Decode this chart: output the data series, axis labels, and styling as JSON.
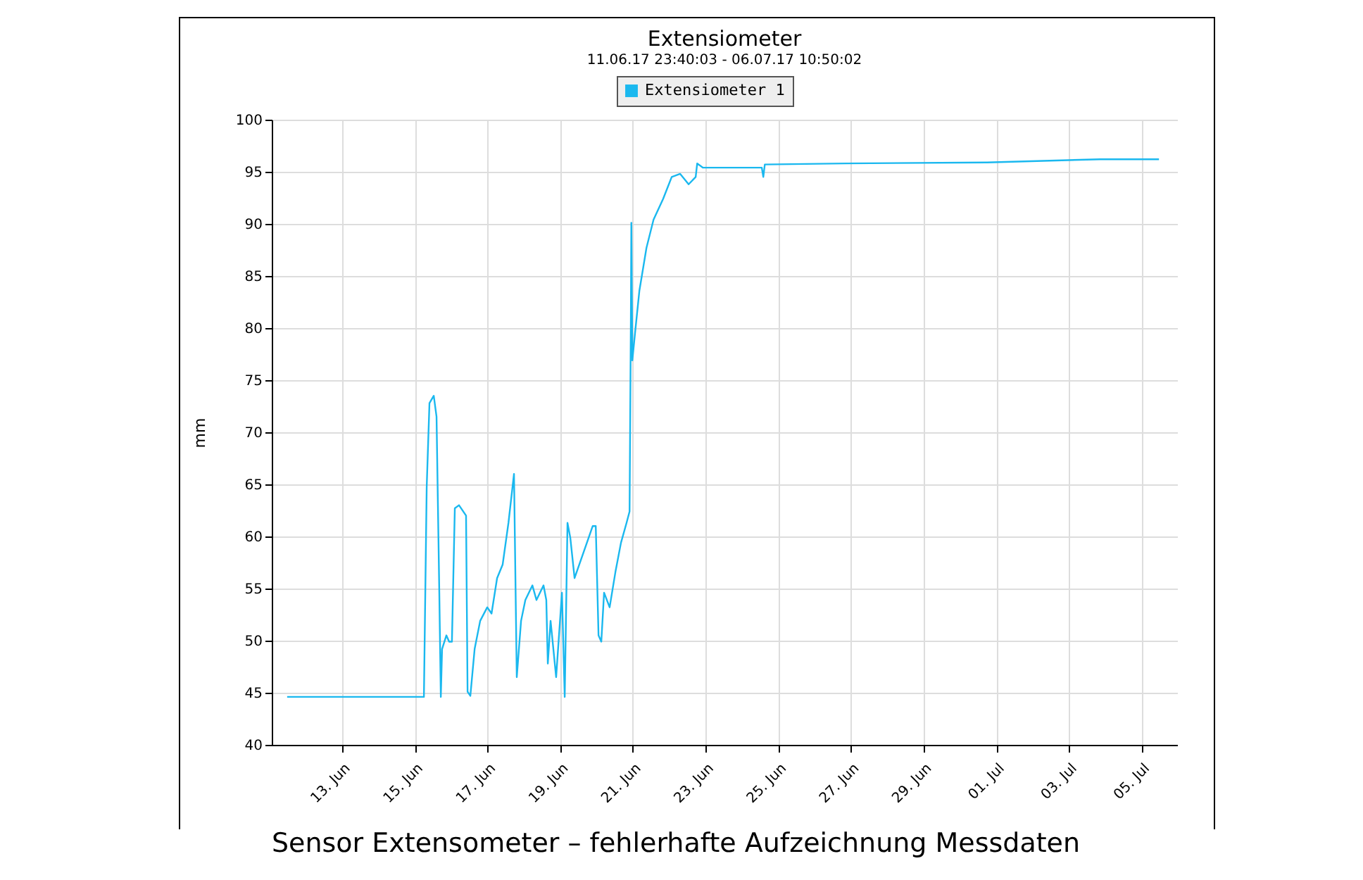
{
  "chart_data": {
    "type": "line",
    "title": "Extensiometer",
    "subtitle": "11.06.17 23:40:03 - 06.07.17 10:50:02",
    "ylabel": "mm",
    "annotations": [
      "Sensor Extensometer – fehlerhafte Aufzeichnung Messdaten"
    ],
    "x": [
      "--06-11T11:40",
      "--06-15T06:00",
      "--06-15T07:50",
      "--06-15T09:40",
      "--06-15T12:30",
      "--06-15T14:20",
      "--06-15T16:10",
      "--06-15T17:10",
      "--06-15T18:00",
      "--06-15T20:50",
      "--06-15T22:40",
      "--06-16T00:30",
      "--06-16T02:25",
      "--06-16T05:10",
      "--06-16T09:50",
      "--06-16T10:50",
      "--06-16T12:40",
      "--06-16T15:30",
      "--06-16T19:10",
      "--06-16T23:50",
      "--06-17T02:40",
      "--06-17T06:20",
      "--06-17T10:00",
      "--06-17T13:50",
      "--06-17T17:30",
      "--06-17T19:20",
      "--06-17T22:10",
      "--06-18T01:00",
      "--06-18T05:40",
      "--06-18T08:20",
      "--06-18T13:00",
      "--06-18T14:50",
      "--06-18T15:50",
      "--06-18T17:40",
      "--06-18T21:20",
      "--06-19T01:10",
      "--06-19T03:00",
      "--06-19T04:50",
      "--06-19T06:40",
      "--06-19T09:30",
      "--06-19T21:30",
      "--06-19T23:30",
      "--06-20T01:20",
      "--06-20T03:10",
      "--06-20T05:00",
      "--06-20T08:40",
      "--06-20T12:30",
      "--06-20T16:10",
      "--06-20T19:50",
      "--06-20T21:50",
      "--06-20T22:40",
      "--06-20T23:00",
      "--06-20T23:40",
      "--06-21T01:30",
      "--06-21T04:20",
      "--06-21T09:00",
      "--06-21T13:40",
      "--06-21T20:00",
      "--06-22T01:40",
      "--06-22T07:15",
      "--06-22T12:50",
      "--06-22T17:30",
      "--06-22T18:30",
      "--06-22T22:10",
      "--06-24T13:10",
      "--06-24T14:10",
      "--06-24T15:10",
      "--06-26T21:00",
      "--06-30T18:00",
      "--07-03T20:30",
      "--07-05T11:30"
    ],
    "series": [
      {
        "name": "Extensiometer 1",
        "color": "#1ab8ef",
        "values": [
          44.6,
          44.6,
          64.7,
          72.8,
          73.5,
          71.5,
          54.6,
          44.6,
          49.2,
          50.5,
          49.9,
          49.9,
          62.7,
          63,
          62,
          45.1,
          44.7,
          49.2,
          51.9,
          53.2,
          52.6,
          56,
          57.3,
          61.3,
          66,
          46.5,
          51.9,
          53.9,
          55.3,
          53.9,
          55.3,
          53.9,
          47.8,
          51.9,
          46.5,
          54.6,
          44.6,
          61.3,
          59.9,
          56,
          61,
          61,
          50.5,
          49.9,
          54.6,
          53.2,
          56.6,
          59.4,
          61.3,
          62.4,
          80.3,
          90.1,
          76.9,
          79.6,
          83.6,
          87.7,
          90.4,
          92.4,
          94.5,
          94.8,
          93.8,
          94.5,
          95.8,
          95.4,
          95.4,
          94.5,
          95.7,
          95.8,
          95.9,
          96.2,
          96.2
        ]
      }
    ],
    "xlim": [
      "--06-11T01:30",
      "--07-05T23:30"
    ],
    "xticks": [
      {
        "value": "--06-13",
        "label": "13. Jun"
      },
      {
        "value": "--06-15",
        "label": "15. Jun"
      },
      {
        "value": "--06-17",
        "label": "17. Jun"
      },
      {
        "value": "--06-19",
        "label": "19. Jun"
      },
      {
        "value": "--06-21",
        "label": "21. Jun"
      },
      {
        "value": "--06-23",
        "label": "23. Jun"
      },
      {
        "value": "--06-25",
        "label": "25. Jun"
      },
      {
        "value": "--06-27",
        "label": "27. Jun"
      },
      {
        "value": "--06-29",
        "label": "29. Jun"
      },
      {
        "value": "--07-01",
        "label": "01. Jul"
      },
      {
        "value": "--07-03",
        "label": "03. Jul"
      },
      {
        "value": "--07-05",
        "label": "05. Jul"
      }
    ],
    "ylim": [
      40,
      100
    ],
    "yticks": [
      40,
      45,
      50,
      55,
      60,
      65,
      70,
      75,
      80,
      85,
      90,
      95,
      100
    ],
    "grid": true,
    "legend": "top",
    "marker": "none",
    "line_style": "solid"
  }
}
